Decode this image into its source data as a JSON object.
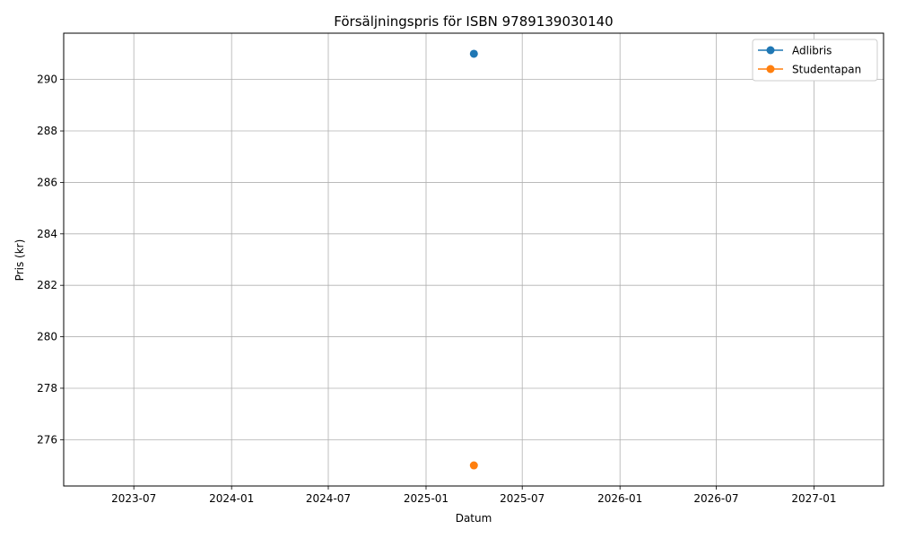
{
  "chart_data": {
    "type": "line",
    "title": "Försäljningspris för ISBN 9789139030140",
    "xlabel": "Datum",
    "ylabel": "Pris (kr)",
    "x_ticks": [
      "2023-07",
      "2024-01",
      "2024-07",
      "2025-01",
      "2025-07",
      "2026-01",
      "2026-07",
      "2027-01"
    ],
    "y_ticks": [
      "276",
      "278",
      "280",
      "282",
      "284",
      "286",
      "288",
      "290"
    ],
    "xlim": [
      "2023-02-19",
      "2027-05-12"
    ],
    "ylim": [
      274.2,
      291.8
    ],
    "grid": true,
    "legend_position": "top-right",
    "series": [
      {
        "name": "Adlibris",
        "color": "#1f77b4",
        "points": [
          {
            "x": "2025-04-01",
            "y": 291
          }
        ]
      },
      {
        "name": "Studentapan",
        "color": "#ff7f0e",
        "points": [
          {
            "x": "2025-04-01",
            "y": 275
          }
        ]
      }
    ]
  }
}
